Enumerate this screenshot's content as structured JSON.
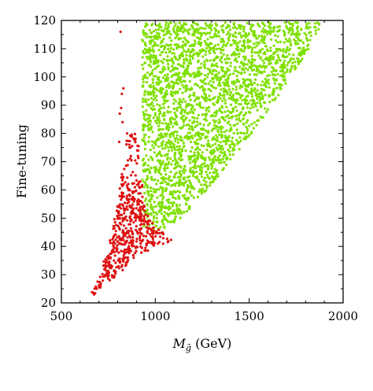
{
  "chart_data": {
    "type": "scatter",
    "xlabel_main": "M",
    "xlabel_sub": "g̃",
    "xlabel_unit": "(GeV)",
    "ylabel": "Fine-tuning",
    "xlim": [
      500,
      2000
    ],
    "ylim": [
      20,
      120
    ],
    "xticks": [
      500,
      1000,
      1500,
      2000
    ],
    "yticks": [
      20,
      30,
      40,
      50,
      60,
      70,
      80,
      90,
      100,
      110,
      120
    ],
    "grid": false,
    "legend": "none",
    "series": [
      {
        "color": "#7fe000",
        "region": {
          "description_only": false,
          "lower_bound": [
            [
              930,
              47
            ],
            [
              1000,
              45
            ],
            [
              1100,
              48
            ],
            [
              1200,
              54
            ],
            [
              1300,
              62
            ],
            [
              1400,
              70
            ],
            [
              1500,
              79
            ],
            [
              1600,
              88
            ],
            [
              1700,
              98
            ],
            [
              1800,
              108
            ],
            [
              1900,
              120
            ]
          ],
          "left_bound": [
            [
              860,
              120
            ],
            [
              880,
              100
            ],
            [
              900,
              85
            ],
            [
              915,
              75
            ],
            [
              930,
              62
            ],
            [
              940,
              55
            ],
            [
              930,
              47
            ]
          ],
          "y_range": [
            42,
            120
          ]
        },
        "sample_points": [
          [
            870,
            118
          ],
          [
            900,
            110
          ],
          [
            950,
            95
          ],
          [
            1000,
            80
          ],
          [
            1100,
            70
          ],
          [
            1200,
            65
          ],
          [
            1300,
            80
          ],
          [
            1400,
            90
          ],
          [
            1500,
            100
          ],
          [
            1600,
            105
          ],
          [
            1700,
            110
          ],
          [
            1800,
            115
          ],
          [
            1050,
            55
          ],
          [
            1150,
            60
          ],
          [
            1250,
            75
          ],
          [
            1350,
            100
          ],
          [
            1450,
            115
          ],
          [
            1550,
            110
          ],
          [
            1650,
            118
          ],
          [
            950,
            50
          ]
        ]
      },
      {
        "color": "#dd1111",
        "region": {
          "lower_bound": [
            [
              650,
              22
            ],
            [
              700,
              24
            ],
            [
              800,
              30
            ],
            [
              900,
              36
            ],
            [
              1000,
              40
            ],
            [
              1100,
              42
            ]
          ],
          "left_bound": [
            [
              650,
              22
            ],
            [
              700,
              30
            ],
            [
              750,
              40
            ],
            [
              800,
              55
            ],
            [
              830,
              70
            ],
            [
              850,
              80
            ],
            [
              870,
              90
            ],
            [
              880,
              96
            ]
          ],
          "right_bound": [
            [
              1100,
              42
            ],
            [
              1000,
              47
            ],
            [
              950,
              52
            ],
            [
              930,
              62
            ],
            [
              915,
              75
            ],
            [
              900,
              85
            ]
          ]
        },
        "sample_points": [
          [
            660,
            23
          ],
          [
            700,
            25
          ],
          [
            750,
            30
          ],
          [
            800,
            35
          ],
          [
            850,
            40
          ],
          [
            900,
            45
          ],
          [
            950,
            42
          ],
          [
            1000,
            41
          ],
          [
            1050,
            42
          ],
          [
            1100,
            42
          ],
          [
            780,
            45
          ],
          [
            830,
            55
          ],
          [
            880,
            65
          ],
          [
            900,
            75
          ],
          [
            870,
            85
          ],
          [
            815,
            88
          ],
          [
            830,
            96
          ],
          [
            815,
            116
          ]
        ]
      }
    ]
  }
}
